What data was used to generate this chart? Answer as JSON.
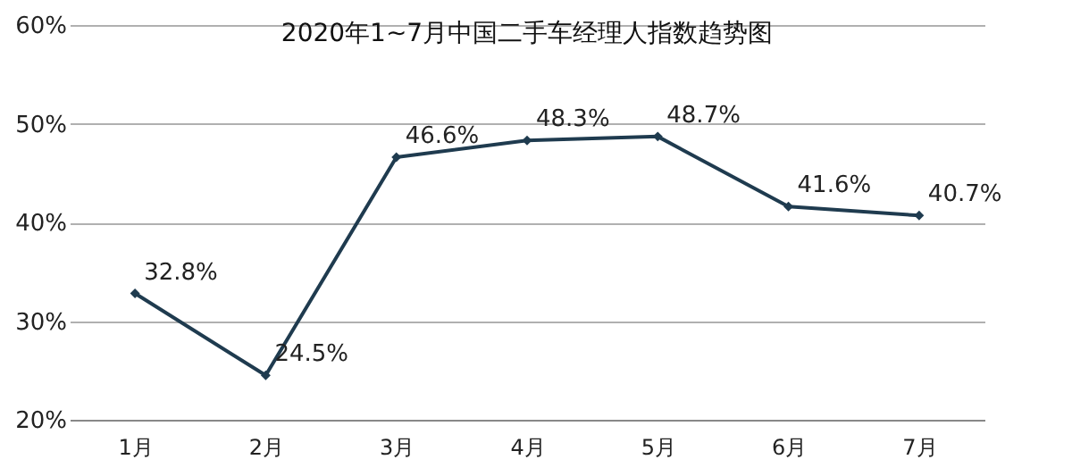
{
  "chart_data": {
    "type": "line",
    "title": "2020年1~7月中国二手车经理人指数趋势图",
    "categories": [
      "1月",
      "2月",
      "3月",
      "4月",
      "5月",
      "6月",
      "7月"
    ],
    "series": [
      {
        "color": "#1f3b4f",
        "values": [
          32.8,
          24.5,
          46.6,
          48.3,
          48.7,
          41.6,
          40.7
        ],
        "value_labels": [
          "32.8%",
          "24.5%",
          "46.6%",
          "48.3%",
          "48.7%",
          "41.6%",
          "40.7%"
        ]
      }
    ],
    "ylim": [
      20,
      60
    ],
    "yticks": [
      {
        "value": 20,
        "label": "20%"
      },
      {
        "value": 30,
        "label": "30%"
      },
      {
        "value": 40,
        "label": "40%"
      },
      {
        "value": 50,
        "label": "50%"
      },
      {
        "value": 60,
        "label": "60%"
      }
    ],
    "grid": "y",
    "marker": "diamond",
    "line_style": "solid"
  }
}
